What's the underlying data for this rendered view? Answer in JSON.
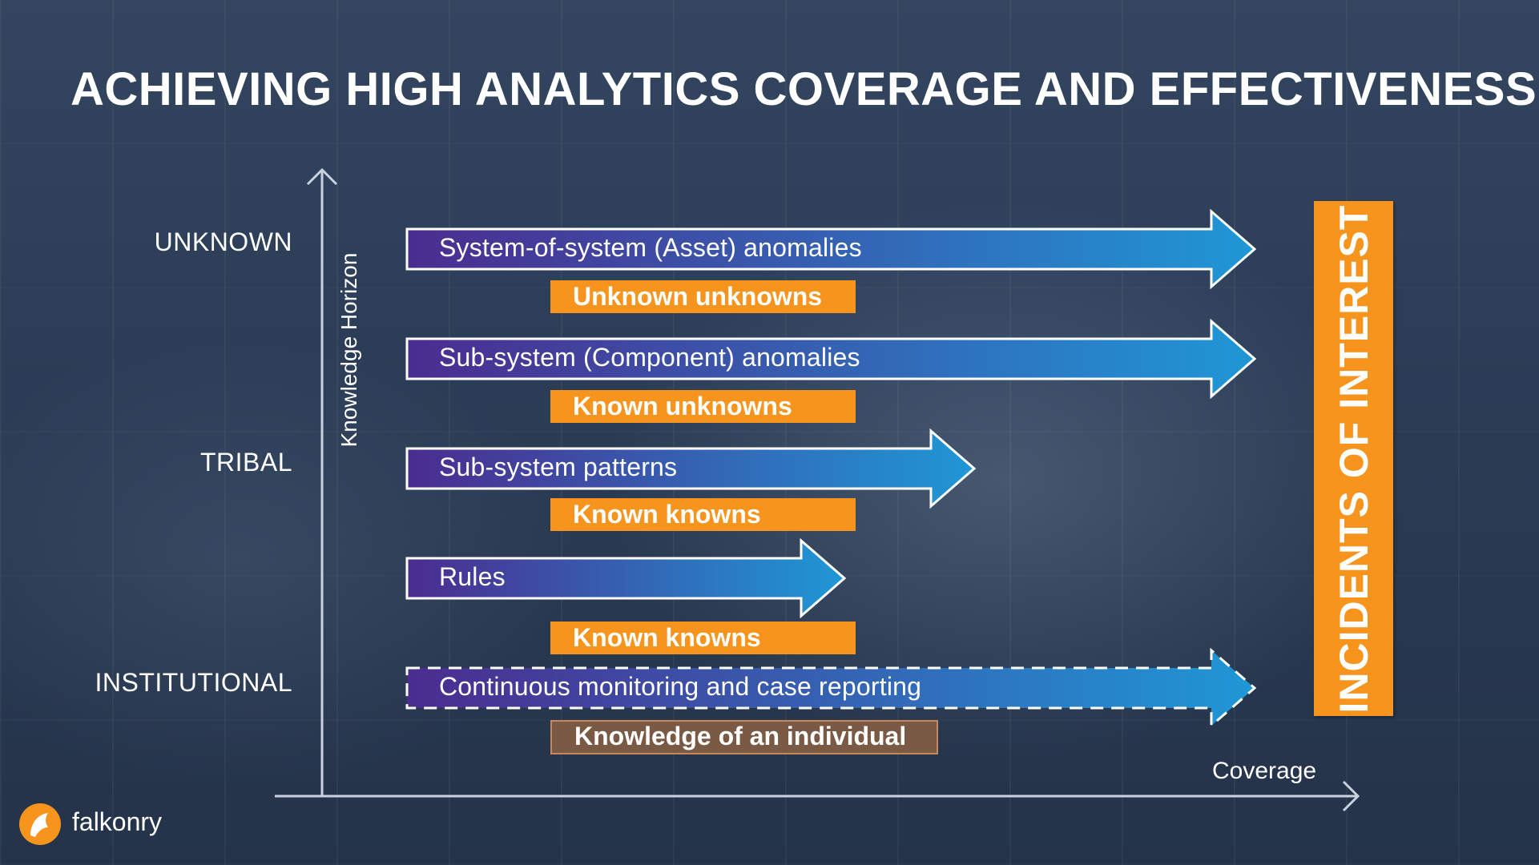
{
  "title": "ACHIEVING HIGH ANALYTICS COVERAGE AND EFFECTIVENESS",
  "y_levels": {
    "unknown": "UNKNOWN",
    "tribal": "TRIBAL",
    "institutional": "INSTITUTIONAL"
  },
  "axes": {
    "y_title": "Knowledge Horizon",
    "x_title": "Coverage"
  },
  "rows": [
    {
      "arrow": "System-of-system (Asset) anomalies",
      "tag": "Unknown unknowns",
      "style": "solid"
    },
    {
      "arrow": "Sub-system (Component) anomalies",
      "tag": "Known unknowns",
      "style": "solid"
    },
    {
      "arrow": "Sub-system patterns",
      "tag": "Known knowns",
      "style": "solid"
    },
    {
      "arrow": "Rules",
      "tag": "Known knowns",
      "style": "solid"
    },
    {
      "arrow": "Continuous monitoring and case reporting",
      "tag": "Knowledge of an individual",
      "style": "dashed"
    }
  ],
  "side_panel": "INCIDENTS OF INTEREST",
  "brand": "falkonry",
  "colors": {
    "arrow_start": "#4b2c8f",
    "arrow_end": "#1f97d6",
    "tag_orange": "#f7941d",
    "tag_brown": "#7a5a44"
  }
}
